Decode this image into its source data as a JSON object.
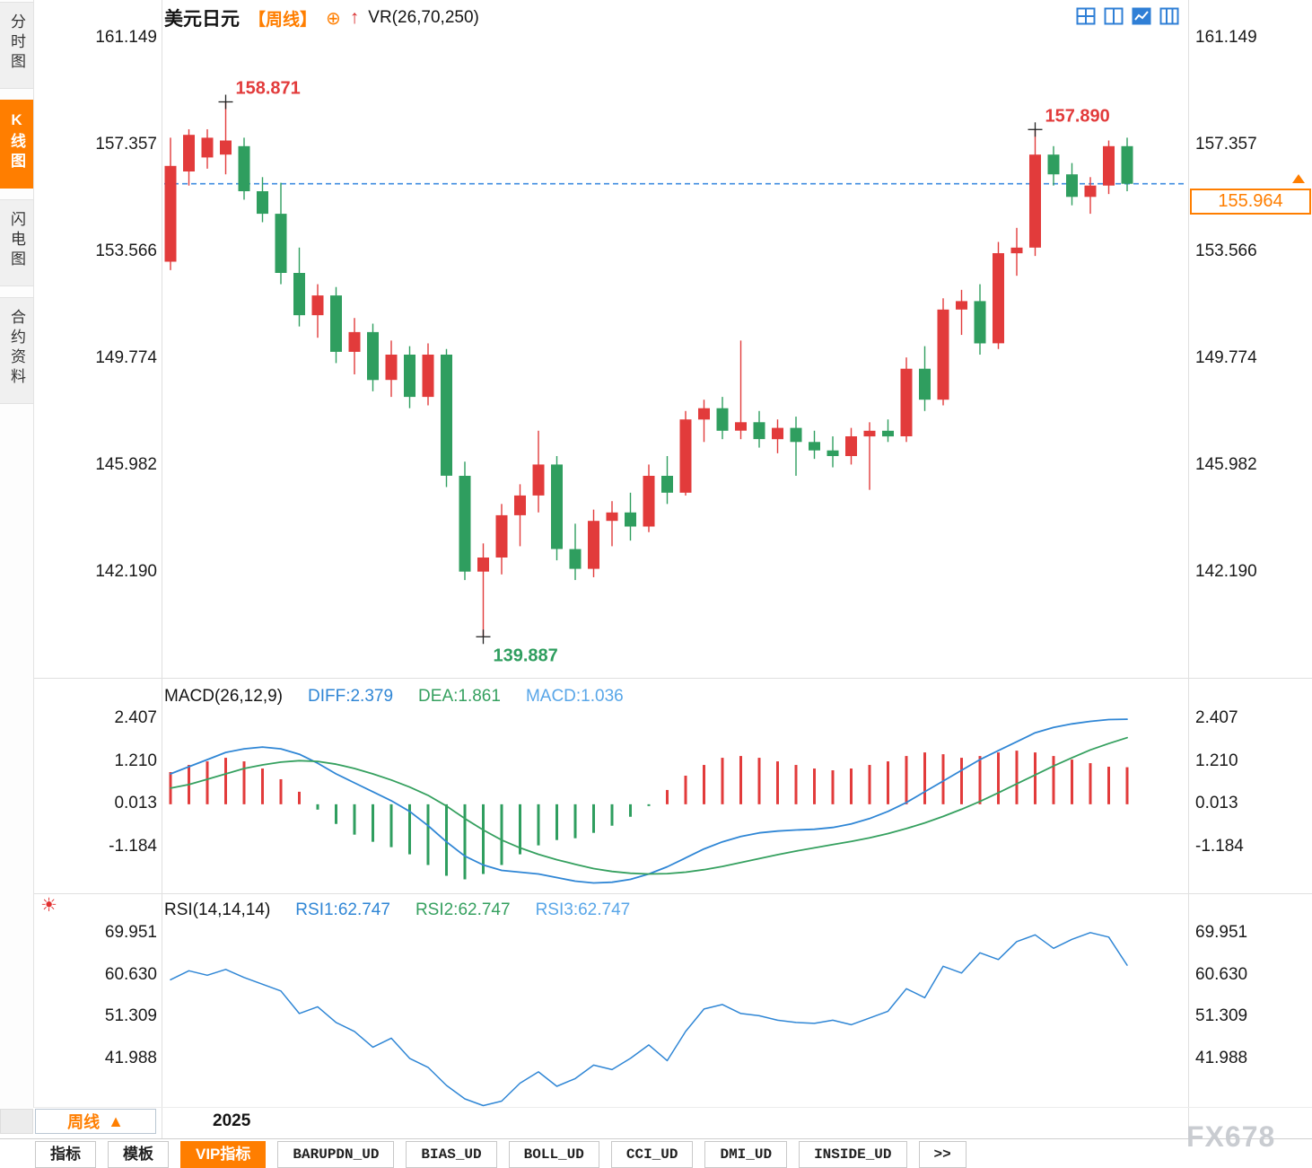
{
  "colors": {
    "up": "#e23b3b",
    "down": "#2f9e5f",
    "accent": "#ff7e00",
    "line_blue": "#2f86d5",
    "line_green": "#35a05f",
    "dashed_blue": "#3f8ce0"
  },
  "icons": {
    "plus_circle": "⊕",
    "up_arrow": "↑",
    "sun": "☀",
    "triangle_up": "▲"
  },
  "sidebar": {
    "items": [
      {
        "label": "分时图",
        "active": false
      },
      {
        "label": "K线图",
        "active": true
      },
      {
        "label": "闪电图",
        "active": false
      },
      {
        "label": "合约资料",
        "active": false
      }
    ]
  },
  "header": {
    "symbol": "美元日元",
    "period_tag": "【周线】",
    "indicator_label": "VR(26,70,250)"
  },
  "indicator_rows": {
    "macd_title": "MACD(26,12,9)",
    "diff_label": "DIFF:2.379",
    "dea_label": "DEA:1.861",
    "macd_label": "MACD:1.036",
    "rsi_title": "RSI(14,14,14)",
    "rsi1_label": "RSI1:62.747",
    "rsi2_label": "RSI2:62.747",
    "rsi3_label": "RSI3:62.747"
  },
  "footer": {
    "period_selector": "周线",
    "year": "2025",
    "tabs": [
      {
        "label": "指标",
        "active": false
      },
      {
        "label": "模板",
        "active": false
      },
      {
        "label": "VIP指标",
        "active": true
      },
      {
        "label": "BARUPDN_UD",
        "active": false
      },
      {
        "label": "BIAS_UD",
        "active": false
      },
      {
        "label": "BOLL_UD",
        "active": false
      },
      {
        "label": "CCI_UD",
        "active": false
      },
      {
        "label": "DMI_UD",
        "active": false
      },
      {
        "label": "INSIDE_UD",
        "active": false
      },
      {
        "label": ">>",
        "active": false
      }
    ]
  },
  "watermark": "FX678",
  "chart_data": {
    "type": "candlestick",
    "symbol": "美元日元",
    "period": "周线",
    "x_year_label": "2025",
    "price_panel": {
      "y_ticks": [
        "161.149",
        "157.357",
        "153.566",
        "149.774",
        "145.982",
        "142.190"
      ],
      "current_price": 155.964,
      "current_price_label": "155.964",
      "annotations": [
        {
          "index": 3,
          "price": 158.871,
          "label": "158.871",
          "type": "high"
        },
        {
          "index": 17,
          "price": 139.887,
          "label": "139.887",
          "type": "low"
        },
        {
          "index": 47,
          "price": 157.89,
          "label": "157.890",
          "type": "high"
        }
      ],
      "candles_ohlc": [
        [
          153.2,
          157.6,
          152.9,
          156.6
        ],
        [
          156.4,
          157.9,
          155.9,
          157.7
        ],
        [
          156.9,
          157.9,
          156.5,
          157.6
        ],
        [
          157.0,
          158.871,
          156.3,
          157.5
        ],
        [
          157.3,
          157.6,
          155.4,
          155.7
        ],
        [
          155.7,
          156.2,
          154.6,
          154.9
        ],
        [
          154.9,
          156.0,
          152.4,
          152.8
        ],
        [
          152.8,
          153.7,
          150.9,
          151.3
        ],
        [
          151.3,
          152.4,
          150.5,
          152.0
        ],
        [
          152.0,
          152.3,
          149.6,
          150.0
        ],
        [
          150.0,
          151.2,
          149.2,
          150.7
        ],
        [
          150.7,
          151.0,
          148.6,
          149.0
        ],
        [
          149.0,
          150.4,
          148.4,
          149.9
        ],
        [
          149.9,
          150.2,
          148.0,
          148.4
        ],
        [
          148.4,
          150.3,
          148.1,
          149.9
        ],
        [
          149.9,
          150.1,
          145.2,
          145.6
        ],
        [
          145.6,
          146.1,
          141.9,
          142.2
        ],
        [
          142.2,
          143.2,
          139.887,
          142.7
        ],
        [
          142.7,
          144.6,
          142.1,
          144.2
        ],
        [
          144.2,
          145.3,
          143.1,
          144.9
        ],
        [
          144.9,
          147.2,
          144.3,
          146.0
        ],
        [
          146.0,
          146.3,
          142.6,
          143.0
        ],
        [
          143.0,
          143.9,
          141.9,
          142.3
        ],
        [
          142.3,
          144.4,
          142.0,
          144.0
        ],
        [
          144.0,
          144.7,
          143.1,
          144.3
        ],
        [
          144.3,
          145.0,
          143.3,
          143.8
        ],
        [
          143.8,
          146.0,
          143.6,
          145.6
        ],
        [
          145.6,
          146.3,
          144.6,
          145.0
        ],
        [
          145.0,
          147.9,
          144.9,
          147.6
        ],
        [
          147.6,
          148.3,
          146.8,
          148.0
        ],
        [
          148.0,
          148.4,
          146.9,
          147.2
        ],
        [
          147.2,
          150.4,
          146.9,
          147.5
        ],
        [
          147.5,
          147.9,
          146.6,
          146.9
        ],
        [
          146.9,
          147.6,
          146.4,
          147.3
        ],
        [
          147.3,
          147.7,
          145.6,
          146.8
        ],
        [
          146.8,
          147.2,
          146.2,
          146.5
        ],
        [
          146.5,
          147.0,
          145.9,
          146.3
        ],
        [
          146.3,
          147.3,
          146.0,
          147.0
        ],
        [
          147.0,
          147.5,
          145.1,
          147.2
        ],
        [
          147.2,
          147.6,
          146.8,
          147.0
        ],
        [
          147.0,
          149.8,
          146.8,
          149.4
        ],
        [
          149.4,
          150.2,
          147.9,
          148.3
        ],
        [
          148.3,
          151.9,
          148.1,
          151.5
        ],
        [
          151.5,
          152.2,
          150.6,
          151.8
        ],
        [
          151.8,
          152.4,
          149.9,
          150.3
        ],
        [
          150.3,
          153.9,
          150.1,
          153.5
        ],
        [
          153.5,
          154.4,
          152.7,
          153.7
        ],
        [
          153.7,
          157.89,
          153.4,
          157.0
        ],
        [
          157.0,
          157.3,
          155.9,
          156.3
        ],
        [
          156.3,
          156.7,
          155.2,
          155.5
        ],
        [
          155.5,
          156.2,
          154.9,
          155.9
        ],
        [
          155.9,
          157.5,
          155.6,
          157.3
        ],
        [
          157.3,
          157.6,
          155.7,
          155.964
        ]
      ]
    },
    "macd_panel": {
      "label": "MACD(26,12,9)",
      "diff": 2.379,
      "dea": 1.861,
      "macd": 1.036,
      "y_ticks": [
        "2.407",
        "1.210",
        "0.013",
        "-1.184"
      ],
      "hist_values": [
        0.9,
        1.1,
        1.2,
        1.3,
        1.2,
        1.0,
        0.7,
        0.35,
        -0.15,
        -0.55,
        -0.85,
        -1.05,
        -1.2,
        -1.4,
        -1.7,
        -2.0,
        -2.1,
        -1.95,
        -1.7,
        -1.4,
        -1.15,
        -1.0,
        -0.95,
        -0.8,
        -0.6,
        -0.35,
        -0.05,
        0.4,
        0.8,
        1.1,
        1.3,
        1.35,
        1.3,
        1.2,
        1.1,
        1.0,
        0.95,
        1.0,
        1.1,
        1.2,
        1.35,
        1.45,
        1.4,
        1.3,
        1.35,
        1.45,
        1.5,
        1.45,
        1.35,
        1.25,
        1.15,
        1.05,
        1.036
      ],
      "diff_series": [
        0.85,
        1.05,
        1.25,
        1.45,
        1.55,
        1.6,
        1.55,
        1.4,
        1.15,
        0.85,
        0.6,
        0.35,
        0.1,
        -0.2,
        -0.6,
        -1.05,
        -1.45,
        -1.7,
        -1.85,
        -1.9,
        -1.95,
        -2.05,
        -2.15,
        -2.2,
        -2.18,
        -2.1,
        -1.95,
        -1.75,
        -1.5,
        -1.25,
        -1.05,
        -0.9,
        -0.8,
        -0.75,
        -0.72,
        -0.7,
        -0.65,
        -0.55,
        -0.4,
        -0.2,
        0.05,
        0.35,
        0.65,
        0.95,
        1.25,
        1.5,
        1.75,
        2.0,
        2.15,
        2.25,
        2.32,
        2.37,
        2.379
      ],
      "dea_series": [
        0.45,
        0.55,
        0.7,
        0.85,
        1.0,
        1.1,
        1.18,
        1.22,
        1.2,
        1.12,
        1.0,
        0.85,
        0.68,
        0.48,
        0.25,
        -0.05,
        -0.4,
        -0.72,
        -1.0,
        -1.22,
        -1.4,
        -1.55,
        -1.68,
        -1.8,
        -1.88,
        -1.93,
        -1.95,
        -1.94,
        -1.9,
        -1.83,
        -1.74,
        -1.63,
        -1.52,
        -1.41,
        -1.31,
        -1.22,
        -1.13,
        -1.04,
        -0.94,
        -0.82,
        -0.68,
        -0.52,
        -0.34,
        -0.14,
        0.08,
        0.32,
        0.57,
        0.82,
        1.07,
        1.3,
        1.52,
        1.7,
        1.861
      ]
    },
    "rsi_panel": {
      "label": "RSI(14,14,14)",
      "y_ticks": [
        "69.951",
        "60.630",
        "51.309",
        "41.988"
      ],
      "rsi_series": [
        59.5,
        61.5,
        60.5,
        61.8,
        60.0,
        58.5,
        57.0,
        52.0,
        53.5,
        50.0,
        48.0,
        44.5,
        46.5,
        42.0,
        40.0,
        36.0,
        33.0,
        31.5,
        32.5,
        36.5,
        39.0,
        35.8,
        37.5,
        40.5,
        39.5,
        42.0,
        45.0,
        41.5,
        48.0,
        53.0,
        54.0,
        52.0,
        51.5,
        50.5,
        50.0,
        49.8,
        50.5,
        49.5,
        51.0,
        52.5,
        57.5,
        55.5,
        62.5,
        61.0,
        65.5,
        64.0,
        68.0,
        69.5,
        66.5,
        68.5,
        70.0,
        69.0,
        62.747
      ]
    }
  }
}
